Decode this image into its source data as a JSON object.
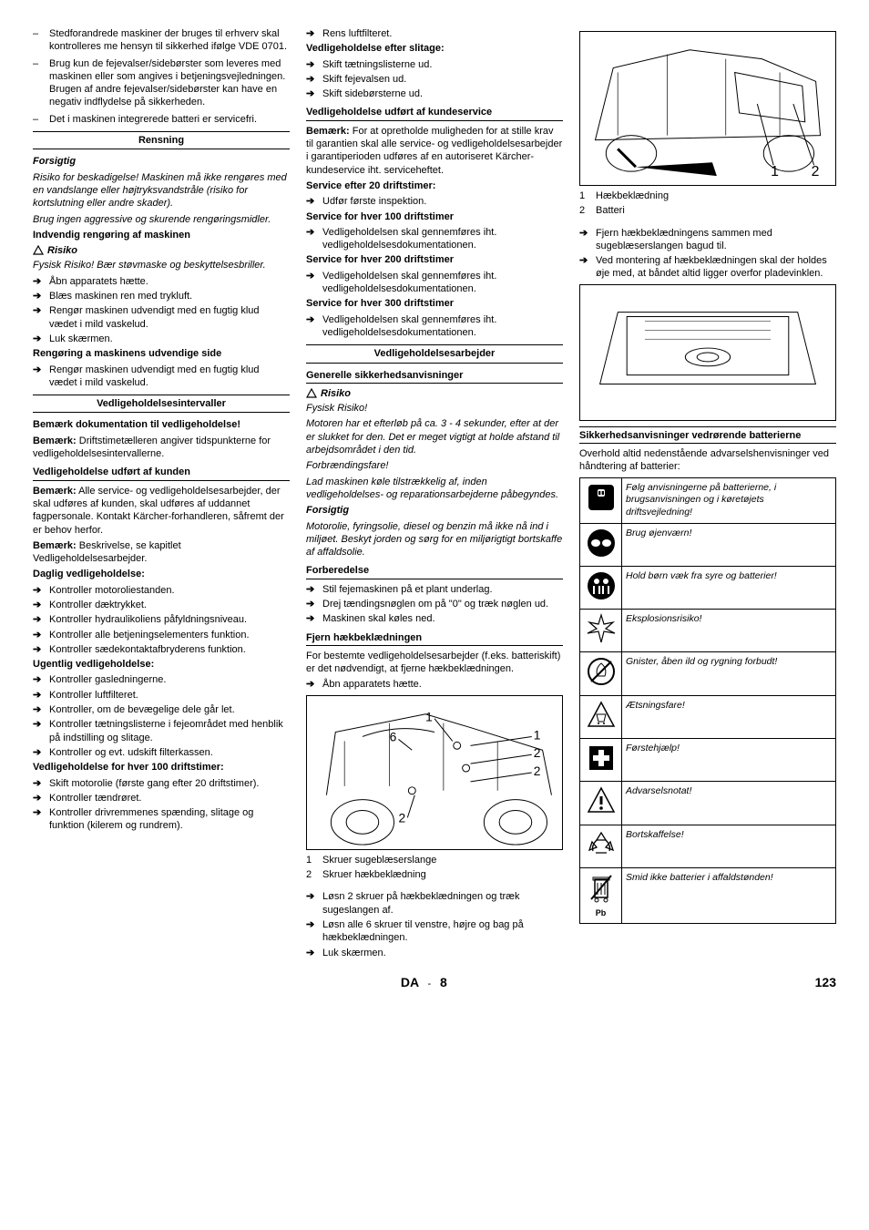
{
  "col1": {
    "dashItems": [
      "Stedforandrede maskiner der bruges til erhverv skal kontrolleres me hensyn til sikkerhed ifølge VDE 0701.",
      "Brug kun de fejevalser/sidebørster som leveres med maskinen eller som angives i betjeningsvejledningen. Brugen af andre fejevalser/sidebørster kan have en negativ indflydelse på sikkerheden.",
      "Det i maskinen integrerede batteri er servicefri."
    ],
    "rensning": "Rensning",
    "forsigtig": "Forsigtig",
    "forsigtigBody1": "Risiko for beskadigelse! Maskinen må ikke rengøres med en vandslange eller højtryksvandstråle (risiko for kortslutning eller andre skader).",
    "forsigtigBody2": "Brug ingen aggressive og skurende rengøringsmidler.",
    "indvendig": "Indvendig rengøring af maskinen",
    "risiko": "Risiko",
    "risikoBody": "Fysisk Risiko! Bær støvmaske og beskyttelsesbriller.",
    "indvendigArrows": [
      "Åbn apparatets hætte.",
      "Blæs maskinen ren med trykluft.",
      "Rengør maskinen udvendigt med en fugtig klud vædet i mild vaskelud.",
      "Luk skærmen."
    ],
    "udvendigHead": "Rengøring a maskinens udvendige side",
    "udvendigArrow": "Rengør maskinen udvendigt med en fugtig klud vædet i mild vaskelud.",
    "vedligeholdHead": "Vedligeholdelsesintervaller",
    "bemHead": "Bemærk dokumentation til vedligeholdelse!",
    "bemBody": "Bemærk: Driftstimetælleren angiver tidspunkterne for vedligeholdelsesintervallerne.",
    "bemLbl": "Bemærk:",
    "bemBodyText": " Driftstimetælleren angiver tidspunkterne for vedligeholdelsesintervallerne.",
    "kundenHead": "Vedligeholdelse udført af kunden",
    "kundenP1a": "Bemærk:",
    "kundenP1b": " Alle service- og vedligeholdelsesarbejder, der skal udføres af kunden, skal udføres af uddannet fagpersonale. Kontakt Kärcher-forhandleren, såfremt der er behov herfor.",
    "kundenP2a": "Bemærk:",
    "kundenP2b": " Beskrivelse, se kapitlet Vedligeholdelsesarbejder.",
    "dagligHead": "Daglig vedligeholdelse:",
    "dagligArrows": [
      "Kontroller motoroliestanden.",
      "Kontroller dæktrykket.",
      "Kontroller hydraulikoliens påfyldningsniveau.",
      "Kontroller alle betjeningselementers funktion.",
      "Kontroller sædekontaktafbryderens funktion."
    ],
    "ugentligHead": "Ugentlig vedligeholdelse:",
    "ugentligArrows": [
      "Kontroller gasledningerne.",
      "Kontroller luftfilteret.",
      "Kontroller, om de bevægelige dele går let.",
      "Kontroller tætningslisterne i fejeområdet med henblik på indstilling og slitage.",
      "Kontroller og evt. udskift filterkassen."
    ],
    "hver100Head": "Vedligeholdelse for hver 100 driftstimer:",
    "hver100Arrows": [
      "Skift motorolie (første gang efter 20 driftstimer).",
      "Kontroller tændrøret.",
      "Kontroller drivremmenes spænding, slitage og funktion (kilerem og rundrem)."
    ]
  },
  "col2": {
    "topArrow": "Rens luftfilteret.",
    "slitageHead": "Vedligeholdelse efter slitage:",
    "slitageArrows": [
      "Skift tætningslisterne ud.",
      "Skift fejevalsen ud.",
      "Skift sidebørsterne ud."
    ],
    "kundeserviceHead": "Vedligeholdelse udført af kundeservice",
    "kundeserviceP1a": "Bemærk:",
    "kundeserviceP1b": " For at opretholde muligheden for at stille krav til garantien skal alle service- og vedligeholdelsesarbejder i garantiperioden udføres af en autoriseret Kärcher-kundeservice iht. serviceheftet.",
    "service20Head": "Service efter 20 driftstimer:",
    "service20Arrow": "Udfør første inspektion.",
    "service100Head": "Service for hver 100 driftstimer",
    "serviceArrow": "Vedligeholdelsen skal gennemføres iht. vedligeholdelsesdokumentationen.",
    "service200Head": "Service for hver 200 driftstimer",
    "service300Head": "Service for hver 300 driftstimer",
    "arbejderHead": "Vedligeholdelsesarbejder",
    "generelleHead": "Generelle sikkerhedsanvisninger",
    "risiko2": "Risiko",
    "fysisk": "Fysisk Risiko!",
    "motorP": "Motoren har et efterløb på ca. 3 - 4 sekunder, efter at der er slukket for den. Det er meget vigtigt at holde afstand til arbejdsområdet i den tid.",
    "forbrand": "Forbrændingsfare!",
    "forbrandP": "Lad maskinen køle tilstrækkelig af, inden vedligeholdelses- og reparationsarbejderne påbegyndes.",
    "forsigtig2": "Forsigtig",
    "forsigtig2P": "Motorolie, fyringsolie, diesel og benzin må ikke nå ind i miljøet. Beskyt jorden og sørg for en miljørigtigt bortskaffe af affaldsolie.",
    "forberedHead": "Forberedelse",
    "forberedArrows": [
      "Stil fejemaskinen på et plant underlag.",
      "Drej tændingsnøglen om på \"0\" og træk nøglen ud.",
      "Maskinen skal køles ned."
    ],
    "fjernHead": "Fjern hækbeklædningen",
    "fjernP": "For bestemte vedligeholdelsesarbejder (f.eks. batteriskift) er det nødvendigt, at fjerne hækbeklædningen.",
    "fjernArrow": "Åbn apparatets hætte.",
    "fig1Labels": [
      "1",
      "6",
      "1",
      "2",
      "2",
      "2"
    ],
    "fig1Legend": [
      {
        "n": "1",
        "t": "Skruer sugeblæserslange"
      },
      {
        "n": "2",
        "t": "Skruer hækbeklædning"
      }
    ],
    "bottomArrows": [
      "Løsn 2 skruer på hækbeklædningen og træk sugeslangen af.",
      "Løsn alle 6 skruer til venstre, højre og bag på hækbeklædningen.",
      "Luk skærmen."
    ]
  },
  "col3": {
    "fig2Labels": [
      "1",
      "2"
    ],
    "fig2Legend": [
      {
        "n": "1",
        "t": "Hækbeklædning"
      },
      {
        "n": "2",
        "t": "Batteri"
      }
    ],
    "topArrows": [
      "Fjern hækbeklædningens sammen med sugeblæserslangen bagud til.",
      "Ved montering af hækbeklædningen skal der holdes øje med, at båndet altid ligger overfor pladevinklen."
    ],
    "batHead": "Sikkerhedsanvisninger vedrørende batterierne",
    "batP": "Overhold altid nedenstående advarselshenvisninger ved håndtering af batterier:",
    "safety": [
      {
        "icon": "info",
        "text": "Følg anvisningerne på batterierne, i brugsanvisningen og i køretøjets driftsvejledning!"
      },
      {
        "icon": "goggles",
        "text": "Brug øjenværn!"
      },
      {
        "icon": "kids",
        "text": "Hold børn væk fra syre og batterier!"
      },
      {
        "icon": "explosion",
        "text": "Eksplosionsrisiko!"
      },
      {
        "icon": "nofire",
        "text": "Gnister, åben ild og rygning forbudt!"
      },
      {
        "icon": "corrosive",
        "text": "Ætsningsfare!"
      },
      {
        "icon": "firstaid",
        "text": "Førstehjælp!"
      },
      {
        "icon": "warning",
        "text": "Advarselsnotat!"
      },
      {
        "icon": "recycle",
        "text": "Bortskaffelse!"
      },
      {
        "icon": "nobin",
        "text": "Smid ikke batterier i affaldstønden!"
      }
    ],
    "pb": "Pb"
  },
  "footer": {
    "lang": "DA",
    "sep": "-",
    "sub": "8",
    "page": "123"
  }
}
